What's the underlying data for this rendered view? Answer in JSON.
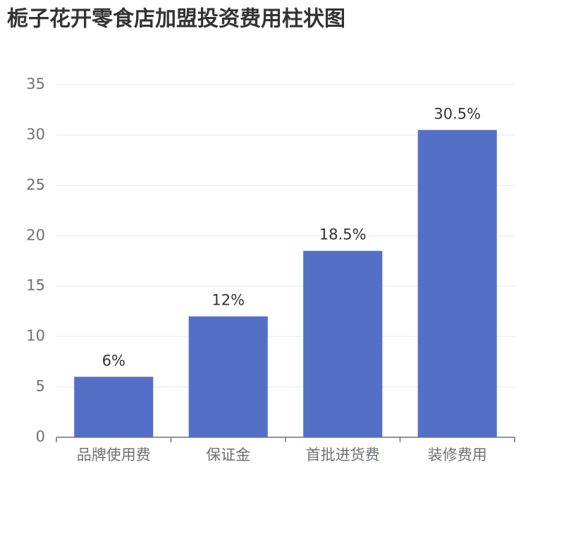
{
  "chart_data": {
    "type": "bar",
    "title": "栀子花开零食店加盟投资费用柱状图",
    "categories": [
      "品牌使用费",
      "保证金",
      "首批进货费",
      "装修费用"
    ],
    "values": [
      6,
      12,
      18.5,
      30.5
    ],
    "value_labels": [
      "6%",
      "12%",
      "18.5%",
      "30.5%"
    ],
    "color": "#5470c6",
    "ylim": [
      0,
      35
    ],
    "yticks": [
      0,
      5,
      10,
      15,
      20,
      25,
      30,
      35
    ],
    "grid": true
  }
}
